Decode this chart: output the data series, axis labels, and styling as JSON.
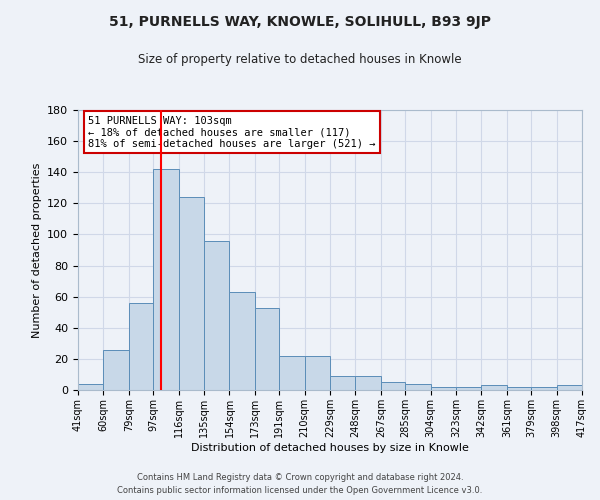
{
  "title": "51, PURNELLS WAY, KNOWLE, SOLIHULL, B93 9JP",
  "subtitle": "Size of property relative to detached houses in Knowle",
  "xlabel": "Distribution of detached houses by size in Knowle",
  "ylabel": "Number of detached properties",
  "bin_edges": [
    41,
    60,
    79,
    97,
    116,
    135,
    154,
    173,
    191,
    210,
    229,
    248,
    267,
    285,
    304,
    323,
    342,
    361,
    379,
    398,
    417
  ],
  "bar_heights": [
    4,
    26,
    56,
    142,
    124,
    96,
    63,
    53,
    22,
    22,
    9,
    9,
    5,
    4,
    2,
    2,
    3,
    2,
    2,
    3
  ],
  "tick_labels": [
    "41sqm",
    "60sqm",
    "79sqm",
    "97sqm",
    "116sqm",
    "135sqm",
    "154sqm",
    "173sqm",
    "191sqm",
    "210sqm",
    "229sqm",
    "248sqm",
    "267sqm",
    "285sqm",
    "304sqm",
    "323sqm",
    "342sqm",
    "361sqm",
    "379sqm",
    "398sqm",
    "417sqm"
  ],
  "bar_color": "#c8d8e8",
  "bar_edge_color": "#5b8db8",
  "grid_color": "#d0d8e8",
  "background_color": "#eef2f8",
  "red_line_x": 103,
  "ylim": [
    0,
    180
  ],
  "yticks": [
    0,
    20,
    40,
    60,
    80,
    100,
    120,
    140,
    160,
    180
  ],
  "annotation_title": "51 PURNELLS WAY: 103sqm",
  "annotation_line1": "← 18% of detached houses are smaller (117)",
  "annotation_line2": "81% of semi-detached houses are larger (521) →",
  "annotation_box_color": "#ffffff",
  "annotation_box_edge": "#cc0000",
  "footer1": "Contains HM Land Registry data © Crown copyright and database right 2024.",
  "footer2": "Contains public sector information licensed under the Open Government Licence v3.0."
}
